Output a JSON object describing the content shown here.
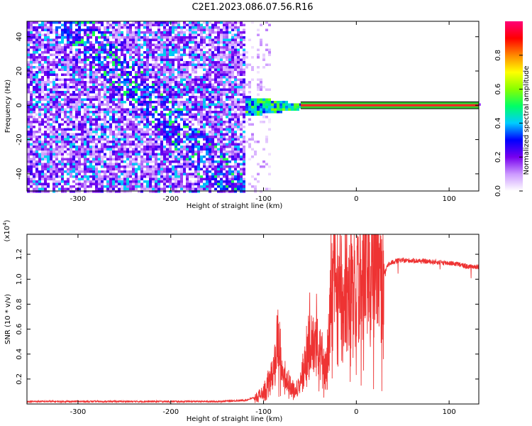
{
  "title": "C2E1.2023.086.07.56.R16",
  "colors": {
    "snr_line": "#ee3333",
    "axis": "#000000",
    "band_green": "#33cc33",
    "band_red": "#ff2222"
  },
  "chart_data": [
    {
      "type": "heatmap",
      "xlabel": "Height of straight line (km)",
      "ylabel": "Frequency (Hz)",
      "xlim": [
        -355,
        132
      ],
      "ylim": [
        -50,
        49
      ],
      "x_ticks": [
        {
          "value": -300,
          "label": "-300"
        },
        {
          "value": -200,
          "label": "-200"
        },
        {
          "value": -100,
          "label": "-100"
        },
        {
          "value": 0,
          "label": "0"
        },
        {
          "value": 100,
          "label": "100"
        }
      ],
      "y_ticks": [
        {
          "value": 40,
          "label": "40"
        },
        {
          "value": 20,
          "label": "20"
        },
        {
          "value": 0,
          "label": "0"
        },
        {
          "value": -20,
          "label": "-20"
        },
        {
          "value": -40,
          "label": "-40"
        }
      ],
      "colorbar": {
        "label": "Normalized spectral amplitude",
        "range": [
          0,
          1
        ],
        "ticks": [
          {
            "value": 0.0,
            "label": "0.0"
          },
          {
            "value": 0.2,
            "label": "0.2"
          },
          {
            "value": 0.4,
            "label": "0.4"
          },
          {
            "value": 0.6,
            "label": "0.6"
          },
          {
            "value": 0.8,
            "label": "0.8"
          }
        ],
        "stops": [
          "#ffffff",
          "#cc99ff",
          "#7700ee",
          "#0000ff",
          "#00ccff",
          "#00ff66",
          "#88ff00",
          "#ffff00",
          "#ff8800",
          "#ff0000",
          "#ff0077"
        ]
      },
      "echo_band": {
        "x_start": -60,
        "x_end": 132,
        "freq": 0,
        "half_width_hz": 2
      }
    },
    {
      "type": "line",
      "xlabel": "Height of straight line (km)",
      "ylabel": "SNR (10 * v/v)",
      "scale_label": "(x10",
      "scale_exp": "4",
      "scale_close": ")",
      "xlim": [
        -355,
        132
      ],
      "ylim": [
        0,
        1.36
      ],
      "x_ticks": [
        {
          "value": -300,
          "label": "-300"
        },
        {
          "value": -200,
          "label": "-200"
        },
        {
          "value": -100,
          "label": "-100"
        },
        {
          "value": 0,
          "label": "0"
        },
        {
          "value": 100,
          "label": "100"
        }
      ],
      "y_ticks": [
        {
          "value": 0.2,
          "label": "0.2"
        },
        {
          "value": 0.4,
          "label": "0.4"
        },
        {
          "value": 0.6,
          "label": "0.6"
        },
        {
          "value": 0.8,
          "label": "0.8"
        },
        {
          "value": 1.0,
          "label": "1.0"
        },
        {
          "value": 1.2,
          "label": "1.2"
        }
      ],
      "series": [
        {
          "x": [
            -355,
            -300,
            -250,
            -200,
            -150,
            -120,
            -110,
            -100,
            -95,
            -90,
            -87,
            -85,
            -83,
            -80,
            -75,
            -70,
            -65,
            -60,
            -55,
            -50,
            -48,
            -45,
            -42,
            -40,
            -38,
            -35,
            -32,
            -30,
            -28,
            -25,
            -22,
            -20,
            -17,
            -15,
            -12,
            -10,
            -5,
            0,
            5,
            10,
            12,
            15,
            20,
            25,
            30,
            35,
            40,
            45,
            60,
            80,
            100,
            110,
            120,
            132
          ],
          "y": [
            0.02,
            0.02,
            0.02,
            0.02,
            0.02,
            0.03,
            0.05,
            0.1,
            0.18,
            0.25,
            0.42,
            0.55,
            0.45,
            0.3,
            0.2,
            0.15,
            0.12,
            0.2,
            0.35,
            0.6,
            0.45,
            0.55,
            0.6,
            0.4,
            0.5,
            0.3,
            0.35,
            0.45,
            0.95,
            1.0,
            1.25,
            0.9,
            1.2,
            0.6,
            0.95,
            0.9,
            1.0,
            0.9,
            1.2,
            1.36,
            1.3,
            1.2,
            1.15,
            1.05,
            1.05,
            1.12,
            1.14,
            1.15,
            1.15,
            1.14,
            1.13,
            1.12,
            1.1,
            1.1
          ]
        }
      ]
    }
  ]
}
